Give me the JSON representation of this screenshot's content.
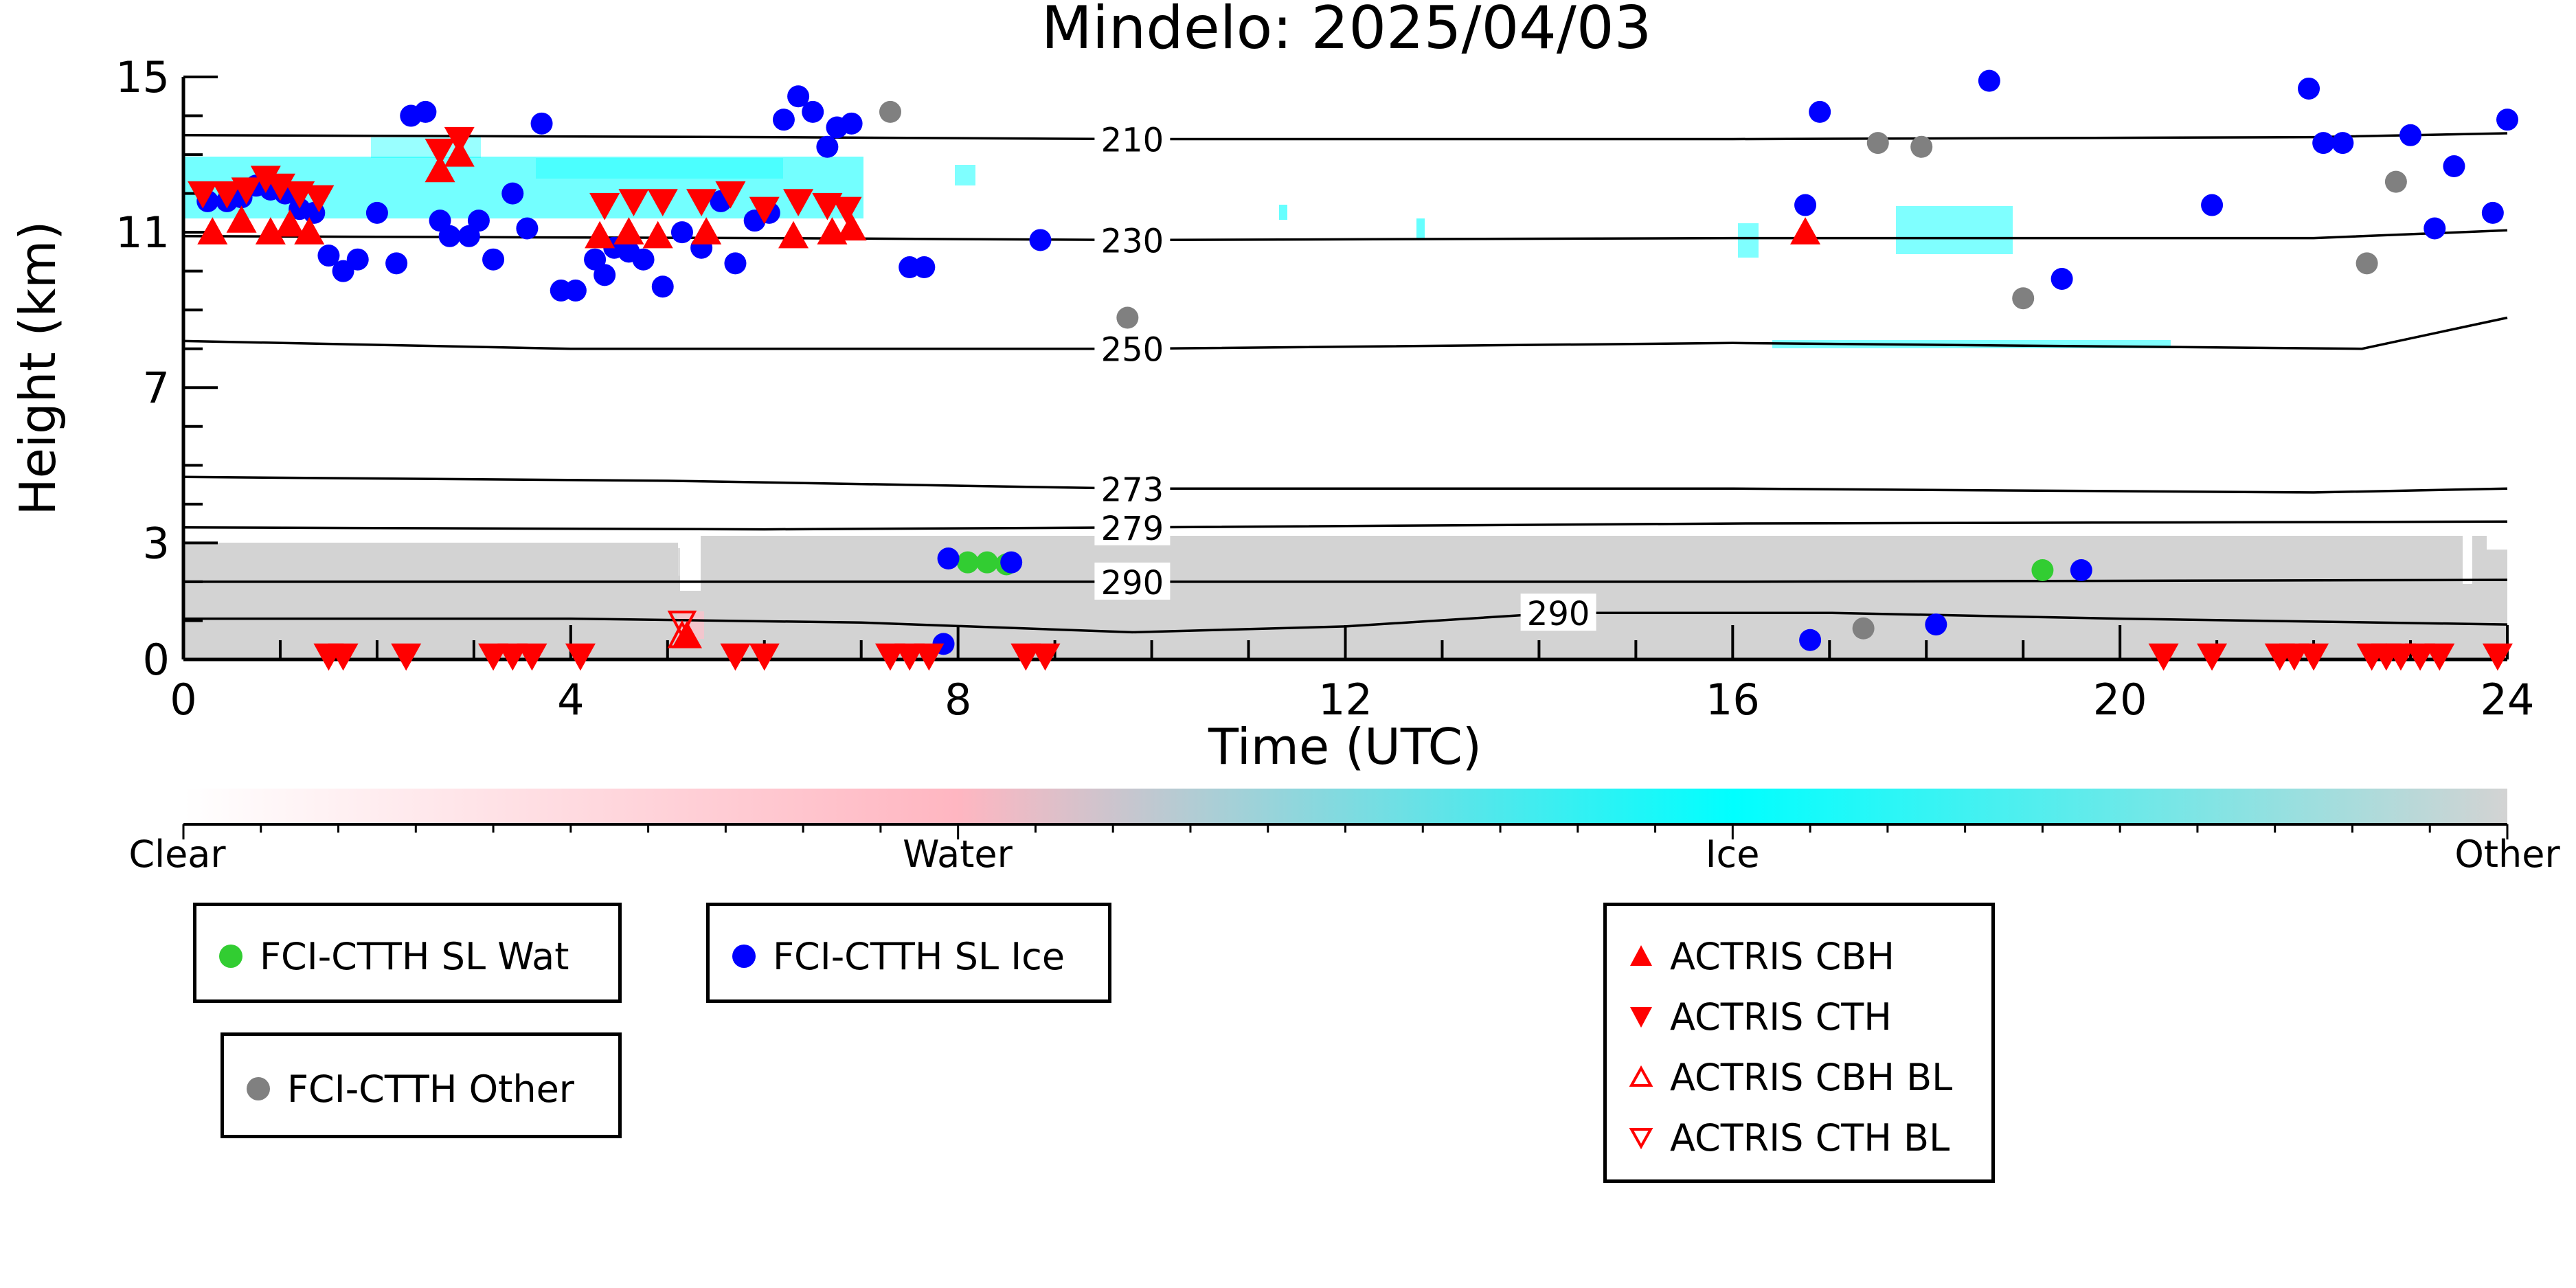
{
  "chart_data": {
    "type": "scatter",
    "title": "Mindelo: 2025/04/03",
    "xlabel": "Time (UTC)",
    "ylabel": "Height (km)",
    "xlim": [
      0,
      24
    ],
    "ylim": [
      0,
      15
    ],
    "xticks": [
      "0",
      "4",
      "8",
      "12",
      "16",
      "20",
      "24"
    ],
    "yticks": [
      "0",
      "3",
      "7",
      "11",
      "15"
    ],
    "colorbar": {
      "labels": [
        "Clear",
        "Water",
        "Ice",
        "Other"
      ],
      "colors": [
        "#ffffff",
        "#ffb6c1",
        "#00ffff",
        "#d3d3d3"
      ]
    },
    "contours": [
      {
        "label": "210",
        "points": [
          [
            0,
            13.5
          ],
          [
            6,
            13.45
          ],
          [
            9.8,
            13.4
          ],
          [
            16,
            13.4
          ],
          [
            22,
            13.45
          ],
          [
            24,
            13.55
          ]
        ]
      },
      {
        "label": "230",
        "points": [
          [
            0,
            10.9
          ],
          [
            6,
            10.85
          ],
          [
            9.8,
            10.8
          ],
          [
            16,
            10.85
          ],
          [
            22,
            10.85
          ],
          [
            24,
            11.05
          ]
        ]
      },
      {
        "label": "250",
        "points": [
          [
            0,
            8.2
          ],
          [
            4,
            8.0
          ],
          [
            9.8,
            8.0
          ],
          [
            16,
            8.15
          ],
          [
            22.5,
            8.0
          ],
          [
            24,
            8.8
          ]
        ]
      },
      {
        "label": "273",
        "points": [
          [
            0,
            4.7
          ],
          [
            5,
            4.6
          ],
          [
            9.8,
            4.4
          ],
          [
            16,
            4.4
          ],
          [
            22,
            4.3
          ],
          [
            24,
            4.4
          ]
        ]
      },
      {
        "label": "279",
        "points": [
          [
            0,
            3.4
          ],
          [
            6,
            3.35
          ],
          [
            9.8,
            3.4
          ],
          [
            16,
            3.5
          ],
          [
            24,
            3.55
          ]
        ]
      },
      {
        "label": "290",
        "points": [
          [
            0,
            2.0
          ],
          [
            6,
            2.0
          ],
          [
            9.8,
            2.0
          ],
          [
            16,
            2.0
          ],
          [
            24,
            2.05
          ]
        ]
      },
      {
        "label": "290",
        "points": [
          [
            0,
            1.05
          ],
          [
            4,
            1.05
          ],
          [
            7,
            0.95
          ],
          [
            9.8,
            0.7
          ],
          [
            12,
            0.85
          ],
          [
            14.2,
            1.2
          ],
          [
            17,
            1.2
          ],
          [
            20,
            1.05
          ],
          [
            24,
            0.9
          ]
        ]
      }
    ],
    "series": [
      {
        "name": "FCI-CTTH SL Wat",
        "color": "#32cd32",
        "marker": "circle",
        "points": [
          [
            8.1,
            2.5
          ],
          [
            8.3,
            2.5
          ],
          [
            8.5,
            2.45
          ],
          [
            19.2,
            2.3
          ]
        ]
      },
      {
        "name": "FCI-CTTH SL Ice",
        "color": "#0000ff",
        "marker": "circle",
        "points": [
          [
            0.25,
            11.8
          ],
          [
            0.45,
            11.8
          ],
          [
            0.6,
            11.9
          ],
          [
            0.75,
            12.2
          ],
          [
            0.9,
            12.1
          ],
          [
            1.05,
            12.0
          ],
          [
            1.2,
            11.6
          ],
          [
            1.35,
            11.5
          ],
          [
            1.5,
            10.4
          ],
          [
            1.65,
            10.0
          ],
          [
            1.8,
            10.3
          ],
          [
            2.0,
            11.5
          ],
          [
            2.2,
            10.2
          ],
          [
            2.35,
            14.0
          ],
          [
            2.5,
            14.1
          ],
          [
            2.65,
            11.3
          ],
          [
            2.75,
            10.9
          ],
          [
            2.95,
            10.9
          ],
          [
            3.05,
            11.3
          ],
          [
            3.2,
            10.3
          ],
          [
            3.4,
            12.0
          ],
          [
            3.55,
            11.1
          ],
          [
            3.7,
            13.8
          ],
          [
            3.9,
            9.5
          ],
          [
            4.05,
            9.5
          ],
          [
            4.25,
            10.3
          ],
          [
            4.35,
            9.9
          ],
          [
            4.45,
            10.6
          ],
          [
            4.6,
            10.5
          ],
          [
            4.75,
            10.3
          ],
          [
            4.95,
            9.6
          ],
          [
            5.15,
            11.0
          ],
          [
            5.35,
            10.6
          ],
          [
            5.55,
            11.8
          ],
          [
            5.7,
            10.2
          ],
          [
            5.9,
            11.3
          ],
          [
            6.05,
            11.5
          ],
          [
            6.2,
            13.9
          ],
          [
            6.35,
            14.5
          ],
          [
            6.5,
            14.1
          ],
          [
            6.65,
            13.2
          ],
          [
            6.75,
            13.7
          ],
          [
            6.9,
            13.8
          ],
          [
            7.5,
            10.1
          ],
          [
            7.65,
            10.1
          ],
          [
            8.85,
            10.8
          ],
          [
            7.85,
            0.4
          ],
          [
            7.9,
            2.6
          ],
          [
            8.55,
            2.5
          ],
          [
            16.75,
            11.7
          ],
          [
            16.9,
            14.1
          ],
          [
            18.65,
            14.9
          ],
          [
            19.4,
            9.8
          ],
          [
            19.6,
            2.3
          ],
          [
            20.95,
            11.7
          ],
          [
            21.95,
            14.7
          ],
          [
            22.1,
            13.3
          ],
          [
            22.3,
            13.3
          ],
          [
            23.0,
            13.5
          ],
          [
            23.25,
            11.1
          ],
          [
            23.45,
            12.7
          ],
          [
            23.85,
            11.5
          ],
          [
            24.0,
            13.9
          ],
          [
            16.8,
            0.5
          ],
          [
            18.1,
            0.9
          ]
        ]
      },
      {
        "name": "FCI-CTTH Other",
        "color": "#808080",
        "marker": "circle",
        "points": [
          [
            7.3,
            14.1
          ],
          [
            9.75,
            8.8
          ],
          [
            17.5,
            13.3
          ],
          [
            17.95,
            13.2
          ],
          [
            19.0,
            9.3
          ],
          [
            22.55,
            10.2
          ],
          [
            22.85,
            12.3
          ],
          [
            17.35,
            0.8
          ]
        ]
      },
      {
        "name": "ACTRIS CBH",
        "color": "#ff0000",
        "marker": "triangle-up",
        "points": [
          [
            0.3,
            11.0
          ],
          [
            0.6,
            11.3
          ],
          [
            0.9,
            11.0
          ],
          [
            1.1,
            11.2
          ],
          [
            1.3,
            11.0
          ],
          [
            2.65,
            12.6
          ],
          [
            2.85,
            13.0
          ],
          [
            4.3,
            10.9
          ],
          [
            4.6,
            11.0
          ],
          [
            4.9,
            10.9
          ],
          [
            5.4,
            11.0
          ],
          [
            6.3,
            10.9
          ],
          [
            6.7,
            11.0
          ],
          [
            6.9,
            11.1
          ],
          [
            16.75,
            11.0
          ],
          [
            5.2,
            0.6
          ]
        ]
      },
      {
        "name": "ACTRIS CTH",
        "color": "#ff0000",
        "marker": "triangle-down",
        "points": [
          [
            0.2,
            12.0
          ],
          [
            0.45,
            12.0
          ],
          [
            0.65,
            12.1
          ],
          [
            0.85,
            12.4
          ],
          [
            1.0,
            12.2
          ],
          [
            1.2,
            12.0
          ],
          [
            1.4,
            11.9
          ],
          [
            2.65,
            13.1
          ],
          [
            2.85,
            13.4
          ],
          [
            4.35,
            11.7
          ],
          [
            4.65,
            11.8
          ],
          [
            4.95,
            11.8
          ],
          [
            5.35,
            11.8
          ],
          [
            5.65,
            12.0
          ],
          [
            6.0,
            11.6
          ],
          [
            6.35,
            11.8
          ],
          [
            6.65,
            11.7
          ],
          [
            6.85,
            11.6
          ],
          [
            1.5,
            0.1
          ],
          [
            1.65,
            0.1
          ],
          [
            2.3,
            0.1
          ],
          [
            3.2,
            0.1
          ],
          [
            3.4,
            0.1
          ],
          [
            3.6,
            0.1
          ],
          [
            4.1,
            0.1
          ],
          [
            5.7,
            0.1
          ],
          [
            6.0,
            0.1
          ],
          [
            7.3,
            0.1
          ],
          [
            7.5,
            0.1
          ],
          [
            7.7,
            0.1
          ],
          [
            8.7,
            0.1
          ],
          [
            8.9,
            0.1
          ],
          [
            20.45,
            0.1
          ],
          [
            20.95,
            0.1
          ],
          [
            21.65,
            0.1
          ],
          [
            21.8,
            0.1
          ],
          [
            22.0,
            0.1
          ],
          [
            22.6,
            0.1
          ],
          [
            22.75,
            0.1
          ],
          [
            22.9,
            0.1
          ],
          [
            23.1,
            0.1
          ],
          [
            23.3,
            0.1
          ],
          [
            23.9,
            0.1
          ]
        ]
      },
      {
        "name": "ACTRIS CBH BL",
        "color": "#ff0000",
        "marker": "triangle-up-open",
        "points": [
          [
            5.15,
            0.6
          ]
        ]
      },
      {
        "name": "ACTRIS CTH BL",
        "color": "#ff0000",
        "marker": "triangle-down-open",
        "points": [
          [
            5.15,
            0.95
          ]
        ]
      }
    ],
    "legend": [
      {
        "boxes": "top-left",
        "entries": [
          "FCI-CTTH SL Wat",
          "FCI-CTTH Other"
        ]
      },
      {
        "boxes": "top-center-left",
        "entries": [
          "FCI-CTTH SL Ice"
        ]
      },
      {
        "boxes": "center-right",
        "entries": [
          "ACTRIS CBH",
          "ACTRIS CTH",
          "ACTRIS CBH BL",
          "ACTRIS CTH BL"
        ]
      }
    ]
  }
}
